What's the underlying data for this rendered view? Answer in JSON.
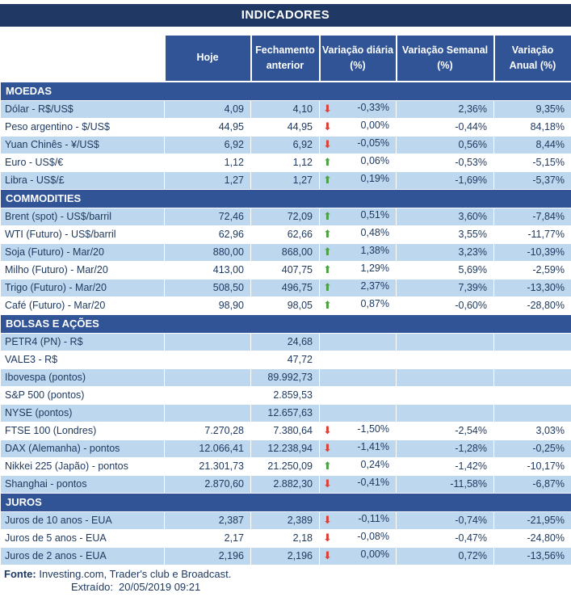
{
  "title": "INDICADORES",
  "table": {
    "columns": [
      "",
      "Hoje",
      "Fechamento\nanterior",
      "Variação diária\n(%)",
      "Variação Semanal\n(%)",
      "Variação\nAnual (%)"
    ],
    "sections": [
      {
        "name": "MOEDAS",
        "rows": [
          {
            "label": "Dólar - R$/US$",
            "hoje": "4,09",
            "fechamento": "4,10",
            "arrow": "down",
            "diaria": "-0,33%",
            "semanal": "2,36%",
            "anual": "9,35%"
          },
          {
            "label": "Peso argentino - $/US$",
            "hoje": "44,95",
            "fechamento": "44,95",
            "arrow": "down",
            "diaria": "0,00%",
            "semanal": "-0,44%",
            "anual": "84,18%"
          },
          {
            "label": "Yuan Chinês - ¥/US$",
            "hoje": "6,92",
            "fechamento": "6,92",
            "arrow": "down",
            "diaria": "-0,05%",
            "semanal": "0,56%",
            "anual": "8,44%"
          },
          {
            "label": "Euro - US$/€",
            "hoje": "1,12",
            "fechamento": "1,12",
            "arrow": "up",
            "diaria": "0,06%",
            "semanal": "-0,53%",
            "anual": "-5,15%"
          },
          {
            "label": "Libra - US$/£",
            "hoje": "1,27",
            "fechamento": "1,27",
            "arrow": "up",
            "diaria": "0,19%",
            "semanal": "-1,69%",
            "anual": "-5,37%"
          }
        ]
      },
      {
        "name": "COMMODITIES",
        "rows": [
          {
            "label": "Brent (spot) - US$/barril",
            "hoje": "72,46",
            "fechamento": "72,09",
            "arrow": "up",
            "diaria": "0,51%",
            "semanal": "3,60%",
            "anual": "-7,84%"
          },
          {
            "label": "WTI (Futuro) - US$/barril",
            "hoje": "62,96",
            "fechamento": "62,66",
            "arrow": "up",
            "diaria": "0,48%",
            "semanal": "3,55%",
            "anual": "-11,77%"
          },
          {
            "label": "Soja (Futuro) - Mar/20",
            "hoje": "880,00",
            "fechamento": "868,00",
            "arrow": "up",
            "diaria": "1,38%",
            "semanal": "3,23%",
            "anual": "-10,39%"
          },
          {
            "label": "Milho (Futuro) - Mar/20",
            "hoje": "413,00",
            "fechamento": "407,75",
            "arrow": "up",
            "diaria": "1,29%",
            "semanal": "5,69%",
            "anual": "-2,59%"
          },
          {
            "label": "Trigo (Futuro) - Mar/20",
            "hoje": "508,50",
            "fechamento": "496,75",
            "arrow": "up",
            "diaria": "2,37%",
            "semanal": "7,39%",
            "anual": "-13,30%"
          },
          {
            "label": "Café (Futuro) - Mar/20",
            "hoje": "98,90",
            "fechamento": "98,05",
            "arrow": "up",
            "diaria": "0,87%",
            "semanal": "-0,60%",
            "anual": "-28,80%"
          }
        ]
      },
      {
        "name": "BOLSAS E AÇÕES",
        "rows": [
          {
            "label": "PETR4 (PN) - R$",
            "hoje": "",
            "fechamento": "24,68",
            "arrow": "",
            "diaria": "",
            "semanal": "",
            "anual": ""
          },
          {
            "label": "VALE3 - R$",
            "hoje": "",
            "fechamento": "47,72",
            "arrow": "",
            "diaria": "",
            "semanal": "",
            "anual": ""
          },
          {
            "label": "Ibovespa (pontos)",
            "hoje": "",
            "fechamento": "89.992,73",
            "arrow": "",
            "diaria": "",
            "semanal": "",
            "anual": ""
          },
          {
            "label": "S&P 500 (pontos)",
            "hoje": "",
            "fechamento": "2.859,53",
            "arrow": "",
            "diaria": "",
            "semanal": "",
            "anual": ""
          },
          {
            "label": "NYSE (pontos)",
            "hoje": "",
            "fechamento": "12.657,63",
            "arrow": "",
            "diaria": "",
            "semanal": "",
            "anual": ""
          },
          {
            "label": "FTSE 100 (Londres)",
            "hoje": "7.270,28",
            "fechamento": "7.380,64",
            "arrow": "down",
            "diaria": "-1,50%",
            "semanal": "-2,54%",
            "anual": "3,03%"
          },
          {
            "label": "DAX (Alemanha) - pontos",
            "hoje": "12.066,41",
            "fechamento": "12.238,94",
            "arrow": "down",
            "diaria": "-1,41%",
            "semanal": "-1,28%",
            "anual": "-0,25%"
          },
          {
            "label": "Nikkei 225 (Japão) - pontos",
            "hoje": "21.301,73",
            "fechamento": "21.250,09",
            "arrow": "up",
            "diaria": "0,24%",
            "semanal": "-1,42%",
            "anual": "-10,17%"
          },
          {
            "label": "Shanghai - pontos",
            "hoje": "2.870,60",
            "fechamento": "2.882,30",
            "arrow": "down",
            "diaria": "-0,41%",
            "semanal": "-11,58%",
            "anual": "-6,87%"
          }
        ]
      },
      {
        "name": "JUROS",
        "rows": [
          {
            "label": "Juros de 10 anos - EUA",
            "hoje": "2,387",
            "fechamento": "2,389",
            "arrow": "down",
            "diaria": "-0,11%",
            "semanal": "-0,74%",
            "anual": "-21,95%"
          },
          {
            "label": "Juros de 5 anos - EUA",
            "hoje": "2,17",
            "fechamento": "2,18",
            "arrow": "down",
            "diaria": "-0,08%",
            "semanal": "-0,47%",
            "anual": "-24,80%"
          },
          {
            "label": "Juros de 2 anos - EUA",
            "hoje": "2,196",
            "fechamento": "2,196",
            "arrow": "down",
            "diaria": "0,00%",
            "semanal": "0,72%",
            "anual": "-13,56%"
          }
        ]
      }
    ]
  },
  "icons": {
    "up": "⬆",
    "down": "⬇"
  },
  "colors": {
    "title_bar": "#1F3864",
    "header_bg": "#305496",
    "section_bg": "#305496",
    "alt_row_bg": "#BDD7EE",
    "up_arrow": "#4CA143",
    "down_arrow": "#DE4038"
  },
  "footer": {
    "fonte_label": "Fonte:",
    "fonte_text": " Investing.com, Trader's club e Broadcast.",
    "extraido_label": "Extraído:",
    "extraido_value": "20/05/2019 09:21"
  }
}
